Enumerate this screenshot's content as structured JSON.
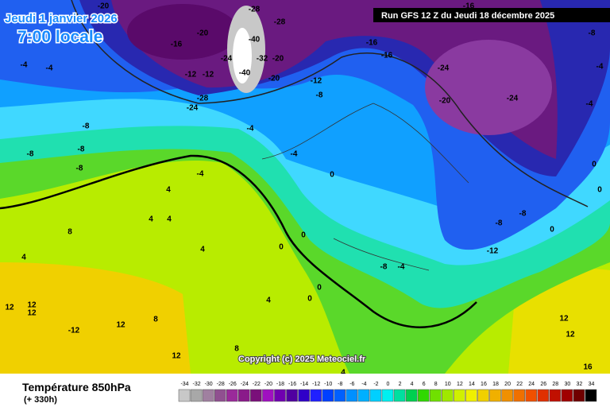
{
  "header": {
    "date": "Jeudi 1 janvier 2026",
    "time": "7:00 locale",
    "run": "Run GFS 12 Z du Jeudi 18 décembre 2025"
  },
  "copyright": "Copyright (c) 2025 Meteociel.fr",
  "legend": {
    "title": "Température 850hPa",
    "lead": "(+ 330h)",
    "levels": [
      -34,
      -32,
      -30,
      -28,
      -26,
      -24,
      -22,
      -20,
      -18,
      -16,
      -14,
      -12,
      -10,
      -8,
      -6,
      -4,
      -2,
      0,
      2,
      4,
      6,
      8,
      10,
      12,
      14,
      16,
      18,
      20,
      22,
      24,
      26,
      28,
      30,
      32,
      34
    ],
    "colors": [
      "#c8c8c8",
      "#a8a8a8",
      "#a080a0",
      "#905090",
      "#9a2a9a",
      "#8a1a8a",
      "#7a107a",
      "#a010c0",
      "#7000b0",
      "#5000a0",
      "#3000c8",
      "#2020ff",
      "#0040ff",
      "#0060ff",
      "#0090ff",
      "#00b0ff",
      "#00d0ff",
      "#00f0f0",
      "#00e0a0",
      "#00d050",
      "#30d800",
      "#70e000",
      "#a0e800",
      "#d0f000",
      "#f0f000",
      "#f0d000",
      "#f0b000",
      "#f09000",
      "#f07000",
      "#f05000",
      "#e03000",
      "#c01000",
      "#a00000",
      "#700000",
      "#000000"
    ]
  },
  "map": {
    "labels": [
      -20,
      -16,
      -20,
      -28,
      -28,
      -40,
      -24,
      -32,
      -40,
      -20,
      -20,
      -12,
      -12,
      -28,
      -24,
      -12,
      -8,
      -16,
      -16,
      -24,
      -20,
      -24,
      -16,
      -4,
      -4,
      -8,
      -8,
      -8,
      -8,
      -4,
      -4,
      4,
      -4,
      4,
      4,
      8,
      4,
      4,
      0,
      0,
      0,
      0,
      0,
      -8,
      -4,
      -8,
      -8,
      -12,
      0,
      12,
      12,
      -12,
      12,
      8,
      12,
      8,
      4,
      4,
      12,
      12,
      12,
      16,
      -4,
      -4,
      0,
      0,
      -8
    ]
  }
}
